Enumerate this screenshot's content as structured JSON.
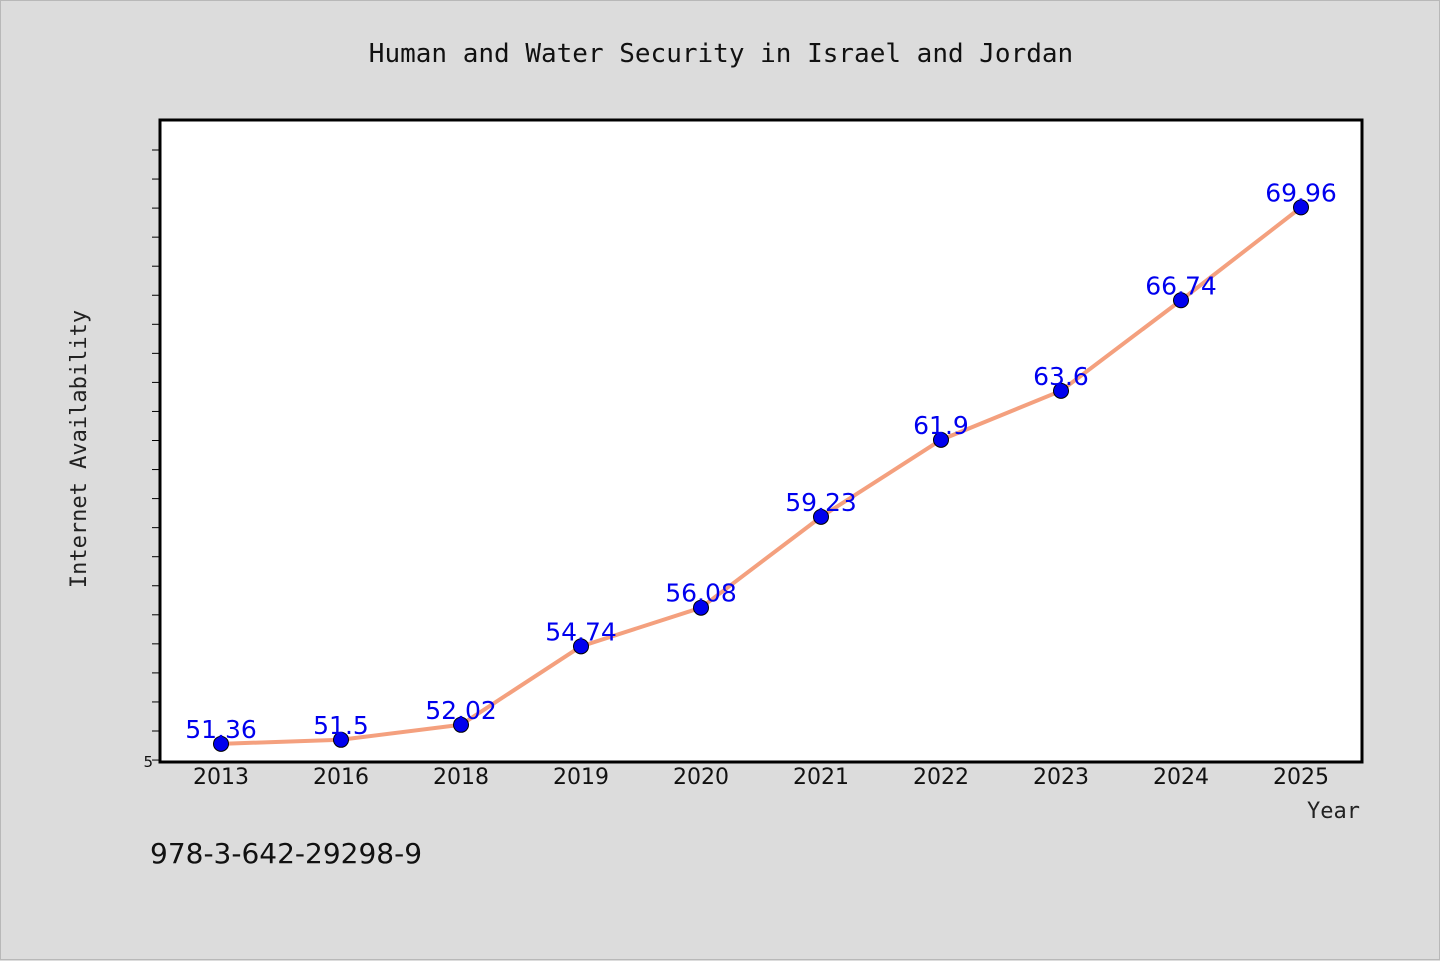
{
  "chart_data": {
    "type": "line",
    "title": "Human and Water Security in Israel and Jordan",
    "xlabel": "Year",
    "ylabel": "Internet Availability",
    "categories": [
      "2013",
      "2016",
      "2018",
      "2019",
      "2020",
      "2021",
      "2022",
      "2023",
      "2024",
      "2025"
    ],
    "series": [
      {
        "values": [
          51.36,
          51.5,
          52.02,
          54.74,
          56.08,
          59.23,
          61.9,
          63.6,
          66.74,
          69.96
        ],
        "labels": [
          "51.36",
          "51.5",
          "52.02",
          "54.74",
          "56.08",
          "59.23",
          "61.9",
          "63.6",
          "66.74",
          "69.96"
        ]
      }
    ],
    "ylim": [
      50.73,
      72.99
    ],
    "y_tick_label": "5",
    "line_color": "#f4a07e",
    "marker_color": "#0000ee",
    "grid": false
  },
  "footer_text": "978-3-642-29298-9"
}
